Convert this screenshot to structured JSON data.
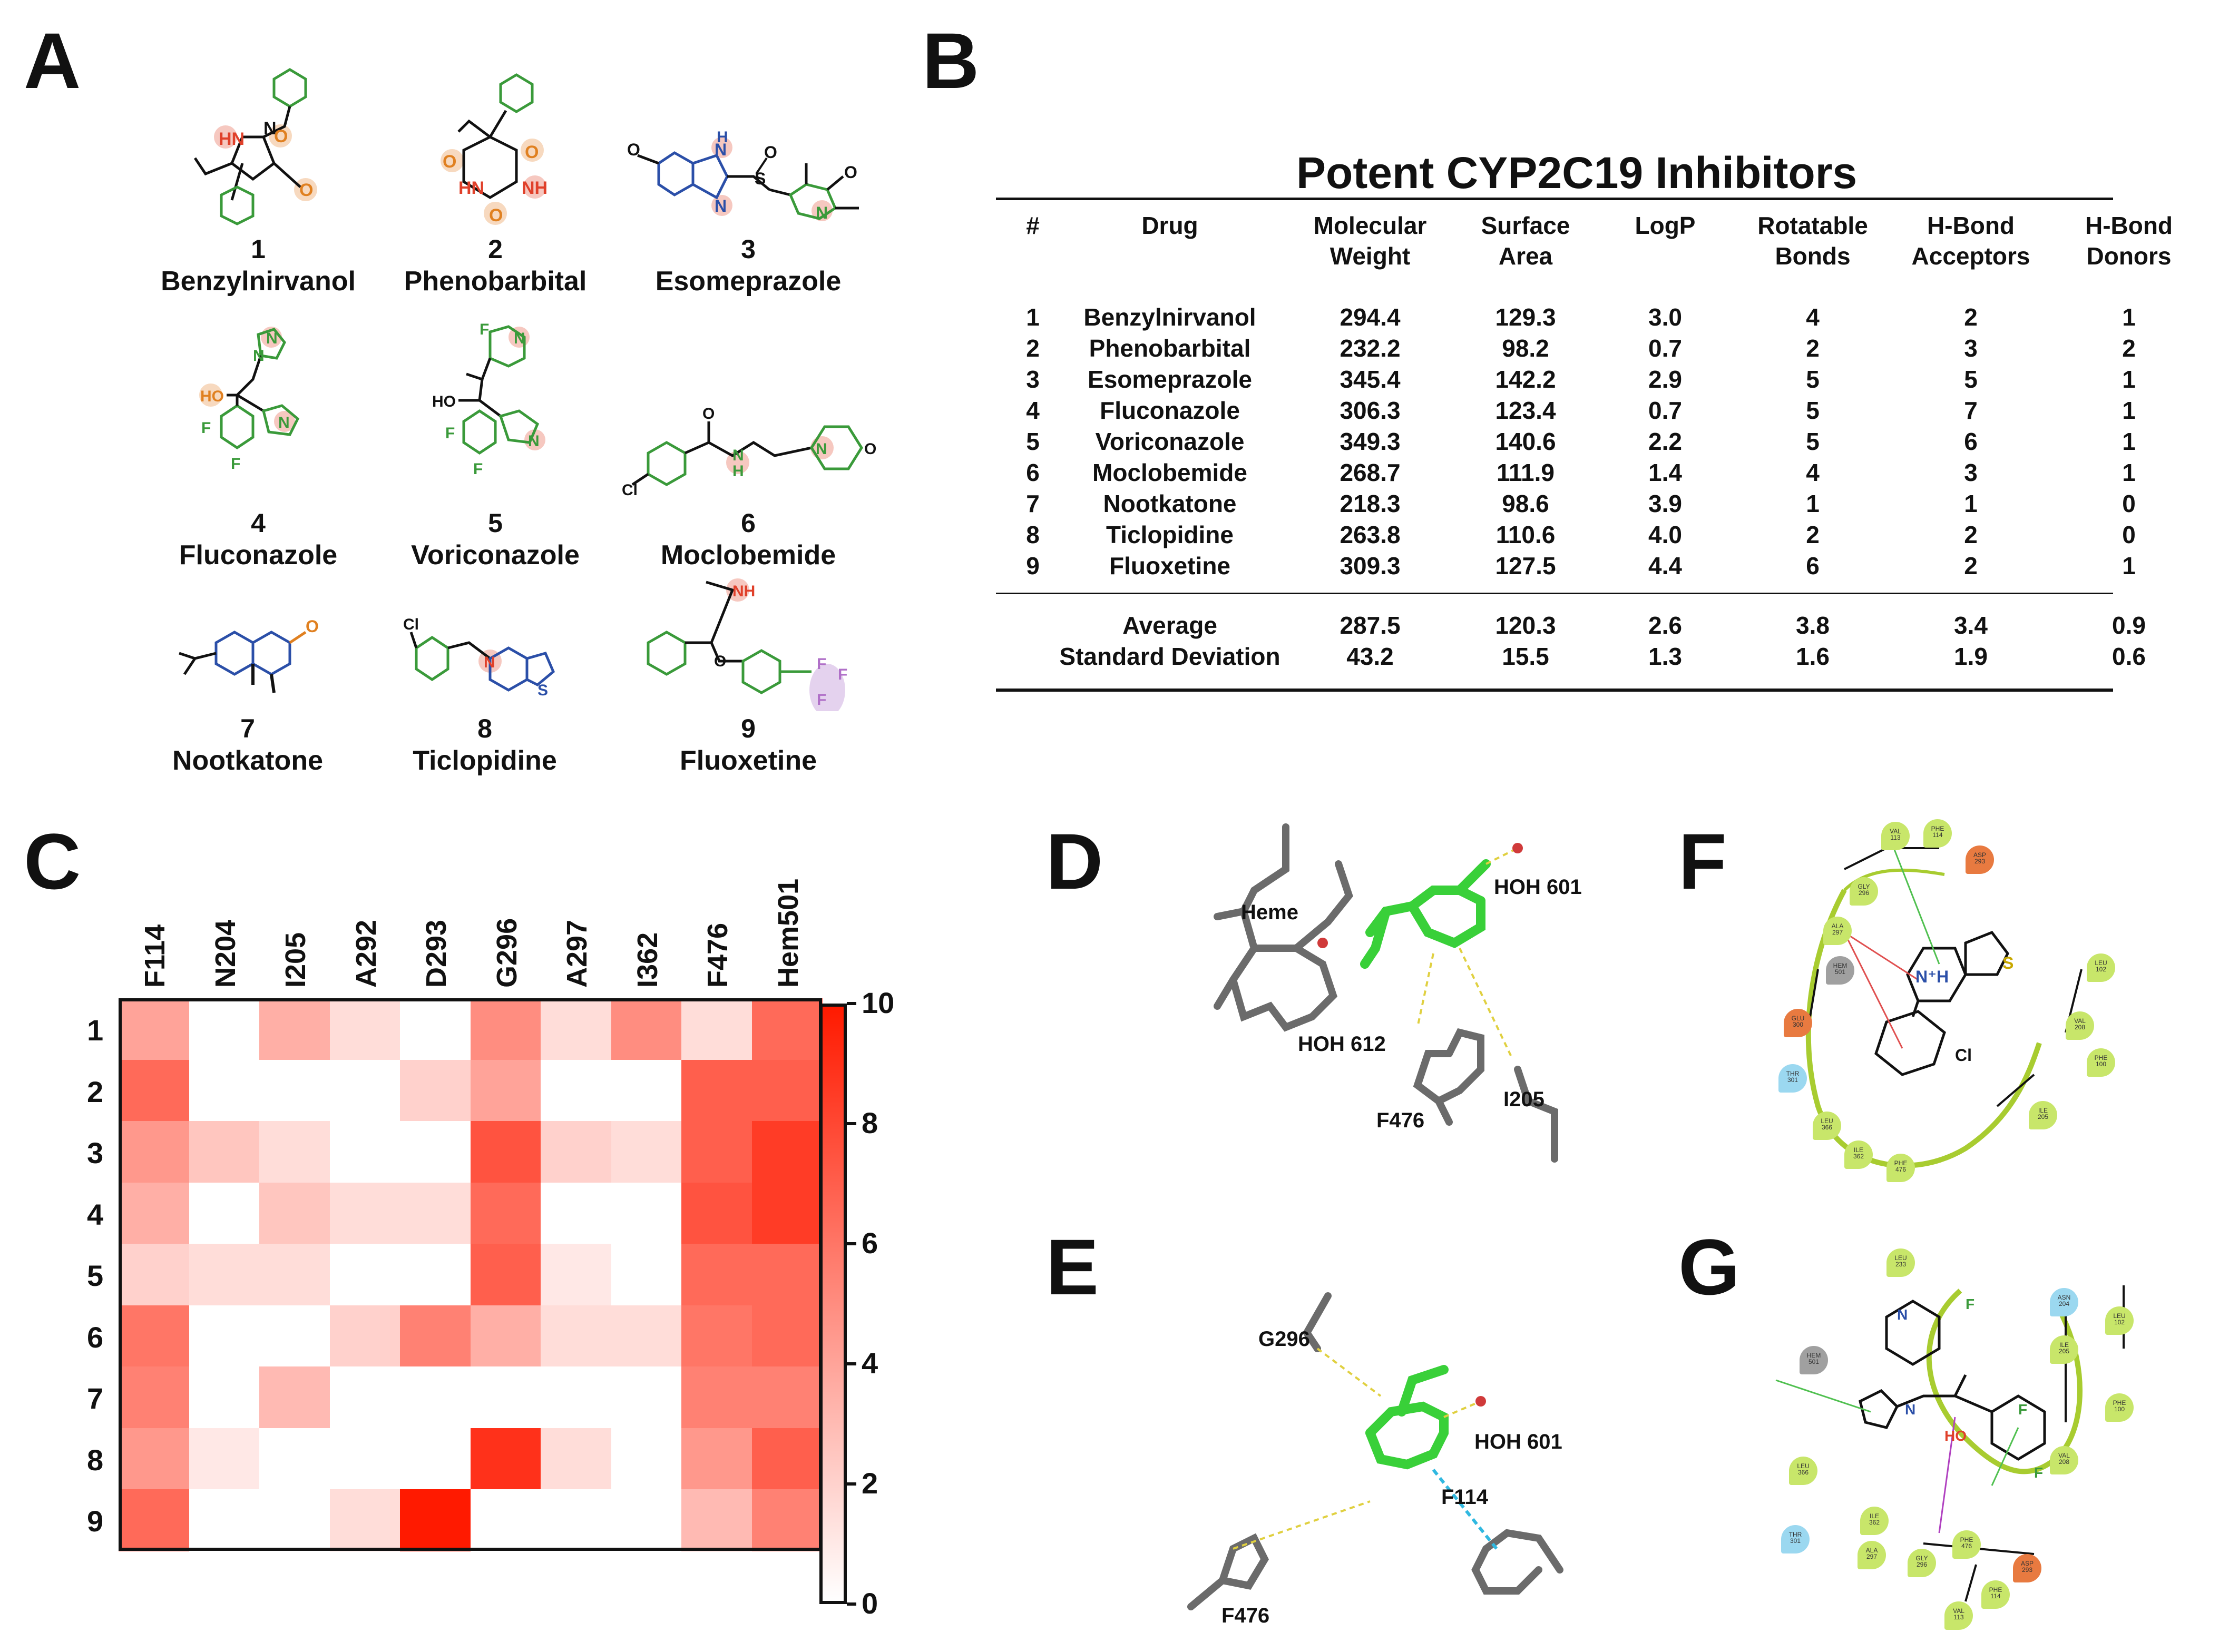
{
  "panels": {
    "a": "A",
    "b": "B",
    "c": "C",
    "d": "D",
    "e": "E",
    "f": "F",
    "g": "G"
  },
  "molecules": [
    {
      "num": "1",
      "name": "Benzylnirvanol"
    },
    {
      "num": "2",
      "name": "Phenobarbital"
    },
    {
      "num": "3",
      "name": "Esomeprazole"
    },
    {
      "num": "4",
      "name": "Fluconazole"
    },
    {
      "num": "5",
      "name": "Voriconazole"
    },
    {
      "num": "6",
      "name": "Moclobemide"
    },
    {
      "num": "7",
      "name": "Nootkatone"
    },
    {
      "num": "8",
      "name": "Ticlopidine"
    },
    {
      "num": "9",
      "name": "Fluoxetine"
    }
  ],
  "atom_labels": {
    "hn": "HN",
    "nh": "NH",
    "o": "O",
    "n": "N",
    "h": "H",
    "s": "S",
    "f": "F",
    "cl": "Cl",
    "ho": "HO",
    "h_prime": "H"
  },
  "table": {
    "title": "Potent CYP2C19 Inhibitors",
    "headers": {
      "num": "#",
      "drug": "Drug",
      "mw1": "Molecular",
      "mw2": "Weight",
      "sa1": "Surface",
      "sa2": "Area",
      "logp": "LogP",
      "rb1": "Rotatable",
      "rb2": "Bonds",
      "hba1": "H-Bond",
      "hba2": "Acceptors",
      "hbd1": "H-Bond",
      "hbd2": "Donors"
    },
    "rows": [
      [
        "1",
        "Benzylnirvanol",
        "294.4",
        "129.3",
        "3.0",
        "4",
        "2",
        "1"
      ],
      [
        "2",
        "Phenobarbital",
        "232.2",
        "98.2",
        "0.7",
        "2",
        "3",
        "2"
      ],
      [
        "3",
        "Esomeprazole",
        "345.4",
        "142.2",
        "2.9",
        "5",
        "5",
        "1"
      ],
      [
        "4",
        "Fluconazole",
        "306.3",
        "123.4",
        "0.7",
        "5",
        "7",
        "1"
      ],
      [
        "5",
        "Voriconazole",
        "349.3",
        "140.6",
        "2.2",
        "5",
        "6",
        "1"
      ],
      [
        "6",
        "Moclobemide",
        "268.7",
        "111.9",
        "1.4",
        "4",
        "3",
        "1"
      ],
      [
        "7",
        "Nootkatone",
        "218.3",
        "98.6",
        "3.9",
        "1",
        "1",
        "0"
      ],
      [
        "8",
        "Ticlopidine",
        "263.8",
        "110.6",
        "4.0",
        "2",
        "2",
        "0"
      ],
      [
        "9",
        "Fluoxetine",
        "309.3",
        "127.5",
        "4.4",
        "6",
        "2",
        "1"
      ]
    ],
    "summary": [
      [
        "Average",
        "287.5",
        "120.3",
        "2.6",
        "3.8",
        "3.4",
        "0.9"
      ],
      [
        "Standard Deviation",
        "43.2",
        "15.5",
        "1.3",
        "1.6",
        "1.9",
        "0.6"
      ]
    ]
  },
  "chart_data": {
    "type": "heatmap",
    "title": "",
    "x_labels": [
      "F114",
      "N204",
      "I205",
      "A292",
      "D293",
      "G296",
      "A297",
      "I362",
      "F476",
      "Hem501"
    ],
    "y_labels": [
      "1",
      "2",
      "3",
      "4",
      "5",
      "6",
      "7",
      "8",
      "9"
    ],
    "values": [
      [
        4,
        0,
        3.5,
        1.5,
        0,
        5,
        1.5,
        5,
        1.5,
        6.5
      ],
      [
        6.5,
        0,
        0,
        0,
        2,
        4,
        0,
        0,
        7,
        7
      ],
      [
        4.5,
        2.5,
        1.5,
        0,
        0,
        7.5,
        2,
        1.5,
        7,
        8.5
      ],
      [
        3.5,
        0,
        2.5,
        1.5,
        1.5,
        6.5,
        0,
        0,
        7.5,
        8.5
      ],
      [
        2,
        1.5,
        1.5,
        0,
        0,
        7,
        1,
        0,
        6.5,
        6.5
      ],
      [
        6,
        0,
        0,
        2,
        5.5,
        3.5,
        1.5,
        1.5,
        6,
        6.5
      ],
      [
        5.5,
        0,
        3,
        0,
        0,
        0,
        0,
        0,
        5.5,
        5.5
      ],
      [
        4.5,
        1,
        0,
        0,
        0,
        9,
        1.5,
        0,
        4.5,
        7
      ],
      [
        6.5,
        0,
        0,
        1.5,
        10,
        0,
        0,
        0,
        3,
        5.5
      ]
    ],
    "colorbar": {
      "min": 0,
      "max": 10,
      "ticks": [
        "0",
        "2",
        "4",
        "6",
        "8",
        "10"
      ],
      "low_color": "#ffffff",
      "high_color": "#ff1a00"
    }
  },
  "docking": {
    "d": {
      "heme": "Heme",
      "hoh601": "HOH 601",
      "hoh612": "HOH 612",
      "f476": "F476",
      "i205": "I205"
    },
    "e": {
      "g296": "G296",
      "hoh601": "HOH 601",
      "f114": "F114",
      "f476": "F476"
    }
  },
  "interaction_f": {
    "residues": [
      {
        "name": "VAL\n113"
      },
      {
        "name": "PHE\n114"
      },
      {
        "name": "ASP\n293"
      },
      {
        "name": "GLY\n296"
      },
      {
        "name": "ALA\n297"
      },
      {
        "name": "HEM\n501"
      },
      {
        "name": "GLU\n300"
      },
      {
        "name": "THR\n301"
      },
      {
        "name": "LEU\n366"
      },
      {
        "name": "ILE\n362"
      },
      {
        "name": "PHE\n476"
      },
      {
        "name": "LEU\n102"
      },
      {
        "name": "VAL\n208"
      },
      {
        "name": "PHE\n100"
      },
      {
        "name": "ILE\n205"
      }
    ],
    "ligand_labels": {
      "nh": "N⁺H",
      "cl": "Cl",
      "s": "S"
    }
  },
  "interaction_g": {
    "residues": [
      {
        "name": "LEU\n233"
      },
      {
        "name": "ASN\n204"
      },
      {
        "name": "LEU\n102"
      },
      {
        "name": "HEM\n501"
      },
      {
        "name": "ILE\n205"
      },
      {
        "name": "PHE\n100"
      },
      {
        "name": "VAL\n208"
      },
      {
        "name": "LEU\n366"
      },
      {
        "name": "ILE\n362"
      },
      {
        "name": "THR\n301"
      },
      {
        "name": "ALA\n297"
      },
      {
        "name": "GLY\n296"
      },
      {
        "name": "PHE\n476"
      },
      {
        "name": "ASP\n293"
      },
      {
        "name": "PHE\n114"
      },
      {
        "name": "VAL\n113"
      }
    ],
    "ligand_labels": {
      "f1": "F",
      "f2": "F",
      "f3": "F",
      "n1": "N",
      "n2": "N",
      "ho": "HO"
    }
  },
  "colors": {
    "green": "#3a9a3a",
    "blue": "#2b4fa8",
    "red_atom": "#e0402a",
    "orange_atom": "#e08020",
    "halo_red": "#f6c8c0",
    "halo_orange": "#f7d9bf",
    "purple": "#b070c8"
  }
}
